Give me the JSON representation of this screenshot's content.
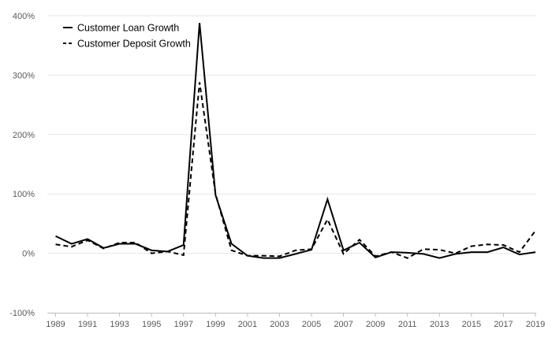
{
  "chart_data": {
    "type": "line",
    "title": "",
    "xlabel": "",
    "ylabel": "",
    "x": [
      1989,
      1990,
      1991,
      1992,
      1993,
      1994,
      1995,
      1996,
      1997,
      1998,
      1999,
      2000,
      2001,
      2002,
      2003,
      2004,
      2005,
      2006,
      2007,
      2008,
      2009,
      2010,
      2011,
      2012,
      2013,
      2014,
      2015,
      2016,
      2017,
      2018,
      2019
    ],
    "x_tick_labels": [
      "1989",
      "1991",
      "1993",
      "1995",
      "1997",
      "1999",
      "2001",
      "2003",
      "2005",
      "2007",
      "2009",
      "2011",
      "2013",
      "2015",
      "2017",
      "2019"
    ],
    "y_tick_labels": [
      "-100%",
      "0%",
      "100%",
      "200%",
      "300%",
      "400%"
    ],
    "y_ticks": [
      -100,
      0,
      100,
      200,
      300,
      400
    ],
    "ylim": [
      -100,
      400
    ],
    "xlim": [
      1989,
      2019
    ],
    "grid": "horizontal",
    "legend_position": "top-left",
    "series": [
      {
        "name": "Customer Loan Growth",
        "style": "solid",
        "color": "#000000",
        "values": [
          29,
          16,
          24,
          9,
          16,
          16,
          5,
          3,
          14,
          388,
          98,
          16,
          -4,
          -8,
          -8,
          -1,
          6,
          91,
          5,
          18,
          -7,
          2,
          1,
          -1,
          -8,
          -1,
          2,
          2,
          10,
          -2,
          2
        ]
      },
      {
        "name": "Customer Deposit Growth",
        "style": "dashed",
        "color": "#000000",
        "values": [
          15,
          11,
          22,
          8,
          18,
          18,
          0,
          3,
          -3,
          288,
          100,
          5,
          -4,
          -4,
          -5,
          5,
          7,
          57,
          -1,
          23,
          -5,
          2,
          -8,
          7,
          6,
          0,
          12,
          15,
          14,
          2,
          38
        ]
      }
    ]
  }
}
